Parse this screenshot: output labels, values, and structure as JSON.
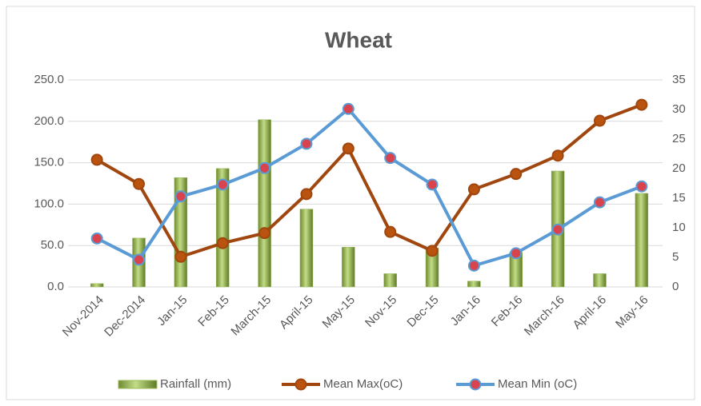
{
  "chart_data": {
    "type": "combo",
    "title": "Wheat",
    "categories": [
      "Nov-2014",
      "Dec-2014",
      "Jan-15",
      "Feb-15",
      "March-15",
      "April-15",
      "May-15",
      "Nov-15",
      "Dec-15",
      "Jan-16",
      "Feb-16",
      "March-16",
      "April-16",
      "May-16"
    ],
    "series": [
      {
        "name": "Rainfall (mm)",
        "type": "bar",
        "color": "#9bbb59",
        "values": [
          4,
          59,
          132,
          143,
          202,
          94,
          48,
          16,
          47,
          7,
          42,
          140,
          16,
          113
        ]
      },
      {
        "name": "Mean Max(oC)",
        "type": "line",
        "axis": "y2",
        "color": "#a0460f",
        "marker_color": "#b9530f",
        "values": [
          21.5,
          17.4,
          5.1,
          7.4,
          9.1,
          15.7,
          23.4,
          9.3,
          6.1,
          16.5,
          19.1,
          22.2,
          28.1,
          30.8
        ]
      },
      {
        "name": "Mean Min (oC)",
        "type": "line",
        "axis": "y2",
        "color": "#5b9bd5",
        "marker_color": "#d9434e",
        "values": [
          8.2,
          4.6,
          15.3,
          17.3,
          20.1,
          24.2,
          30.1,
          21.8,
          17.3,
          3.6,
          5.7,
          9.7,
          14.3,
          17.0
        ]
      }
    ],
    "ylim": [
      0,
      250
    ],
    "yticks": [
      {
        "value": 0,
        "label": "0.0"
      },
      {
        "value": 50,
        "label": "50.0"
      },
      {
        "value": 100,
        "label": "100.0"
      },
      {
        "value": 150,
        "label": "150.0"
      },
      {
        "value": 200,
        "label": "200.0"
      },
      {
        "value": 250,
        "label": "250.0"
      }
    ],
    "y2lim": [
      0,
      35
    ],
    "y2ticks": [
      0,
      5,
      10,
      15,
      20,
      25,
      30,
      35
    ],
    "grid": true,
    "legend": "bottom"
  }
}
